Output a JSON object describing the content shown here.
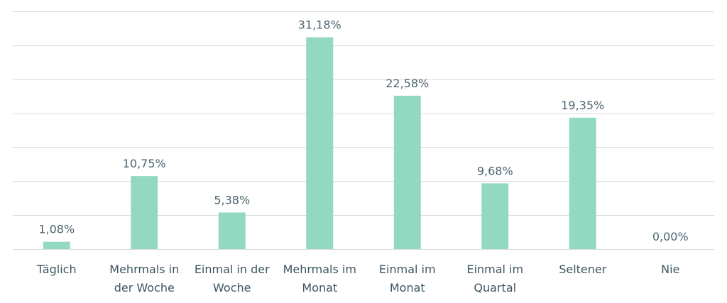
{
  "chart_data": {
    "type": "bar",
    "title": "",
    "xlabel": "",
    "ylabel": "",
    "categories": [
      [
        "Täglich"
      ],
      [
        "Mehrmals in",
        "der Woche"
      ],
      [
        "Einmal in der",
        "Woche"
      ],
      [
        "Mehrmals im",
        "Monat"
      ],
      [
        "Einmal im",
        "Monat"
      ],
      [
        "Einmal im",
        "Quartal"
      ],
      [
        "Seltener"
      ],
      [
        "Nie"
      ]
    ],
    "values": [
      1.08,
      10.75,
      5.38,
      31.18,
      22.58,
      9.68,
      19.35,
      0.0
    ],
    "value_labels": [
      "1,08%",
      "10,75%",
      "5,38%",
      "31,18%",
      "22,58%",
      "9,68%",
      "19,35%",
      "0,00%"
    ],
    "ylim": [
      0,
      35
    ],
    "y_grid_step": 5,
    "grid": true,
    "legend": "none",
    "colors": {
      "bar": "#93d9c2",
      "grid": "#d9d9d9",
      "label": "#4d6470"
    }
  }
}
